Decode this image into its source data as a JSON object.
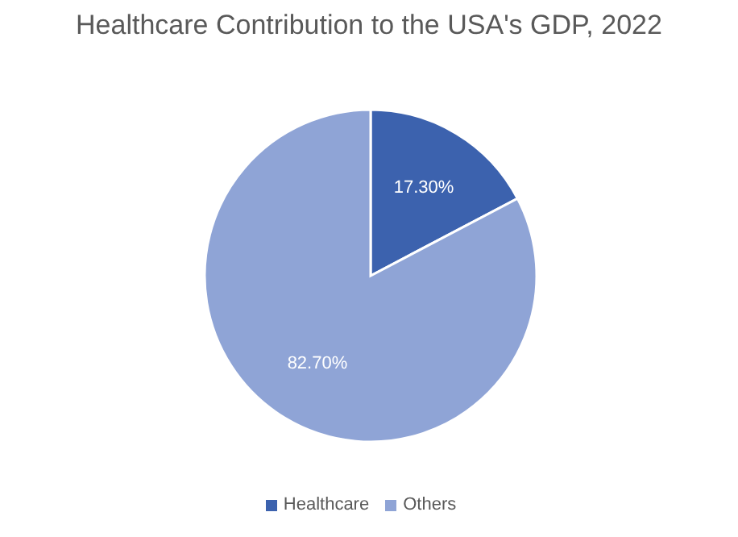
{
  "chart_data": {
    "type": "pie",
    "title": "Healthcare Contribution to the USA's GDP, 2022",
    "categories": [
      "Healthcare",
      "Others"
    ],
    "values": [
      17.3,
      82.7
    ],
    "colors": [
      "#3c62ae",
      "#8fa4d6"
    ],
    "value_labels": [
      "17.30%",
      "82.70%"
    ],
    "legend": "bottom"
  }
}
